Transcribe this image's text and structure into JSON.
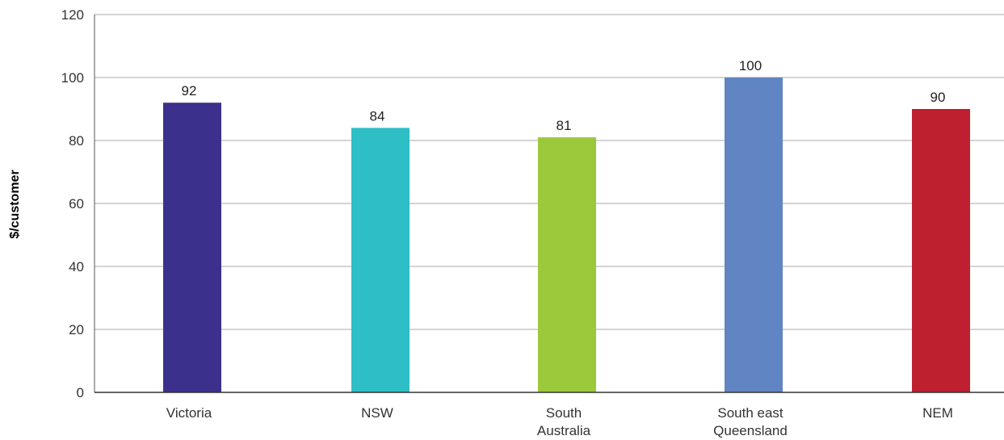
{
  "chart_data": {
    "type": "bar",
    "title": "",
    "xlabel": "",
    "ylabel": "$/customer",
    "ylim": [
      0,
      120
    ],
    "yticks": [
      0,
      20,
      40,
      60,
      80,
      100,
      120
    ],
    "grid": true,
    "categories": [
      [
        "Victoria"
      ],
      [
        "NSW"
      ],
      [
        "South",
        "Australia"
      ],
      [
        "South east",
        "Queensland"
      ],
      [
        "NEM"
      ]
    ],
    "values": [
      92,
      84,
      81,
      100,
      90
    ],
    "data_labels": [
      "92",
      "84",
      "81",
      "100",
      "90"
    ],
    "colors": [
      "#3b318c",
      "#2ebec6",
      "#9cc83c",
      "#6184c2",
      "#be2030"
    ]
  }
}
